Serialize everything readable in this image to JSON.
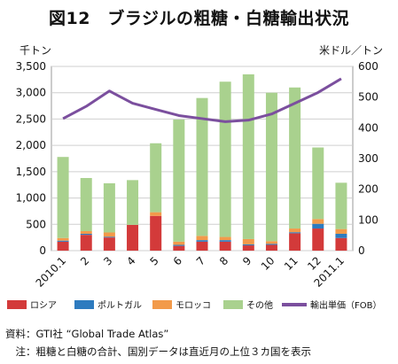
{
  "chart_data": {
    "type": "bar",
    "stacked": true,
    "title": "図12　ブラジルの粗糖・白糖輸出状況",
    "ylabel": "千トン",
    "y2label": "米ドル／トン",
    "categories": [
      "2010.1",
      "2",
      "3",
      "4",
      "5",
      "6",
      "7",
      "8",
      "9",
      "10",
      "11",
      "12",
      "2011.1"
    ],
    "ylim": [
      0,
      3500
    ],
    "y_ticks": [
      "0",
      "500",
      "1,000",
      "1,500",
      "2,000",
      "2,500",
      "3,000",
      "3,500"
    ],
    "y2lim": [
      0,
      600
    ],
    "y2_ticks": [
      "0",
      "100",
      "200",
      "300",
      "400",
      "500",
      "600"
    ],
    "grid": true,
    "legend_position": "bottom",
    "series": [
      {
        "name": "ロシア",
        "color": "#d33a3a",
        "values": [
          170,
          300,
          250,
          490,
          660,
          90,
          170,
          170,
          100,
          110,
          330,
          420,
          240
        ]
      },
      {
        "name": "ポルトガル",
        "color": "#2e7bbf",
        "values": [
          20,
          20,
          15,
          0,
          0,
          20,
          30,
          30,
          20,
          20,
          20,
          90,
          80
        ]
      },
      {
        "name": "モロッコ",
        "color": "#f29a4a",
        "values": [
          50,
          50,
          80,
          0,
          70,
          60,
          80,
          60,
          100,
          50,
          70,
          90,
          90
        ]
      },
      {
        "name": "その他",
        "color": "#a9d18e",
        "values": [
          1540,
          1010,
          935,
          850,
          1310,
          2320,
          2620,
          2950,
          3130,
          2820,
          2680,
          1360,
          880
        ]
      }
    ],
    "line_series": {
      "name": "輸出単価（FOB）",
      "color": "#7b4f9e",
      "axis": "right",
      "values": [
        430,
        470,
        520,
        480,
        460,
        440,
        430,
        420,
        425,
        445,
        480,
        515,
        560
      ]
    }
  },
  "notes": {
    "source": "資料：GTI社 “Global Trade Atlas”",
    "note": "　注：粗糖と白糖の合計、国別データは直近月の上位３カ国を表示"
  }
}
